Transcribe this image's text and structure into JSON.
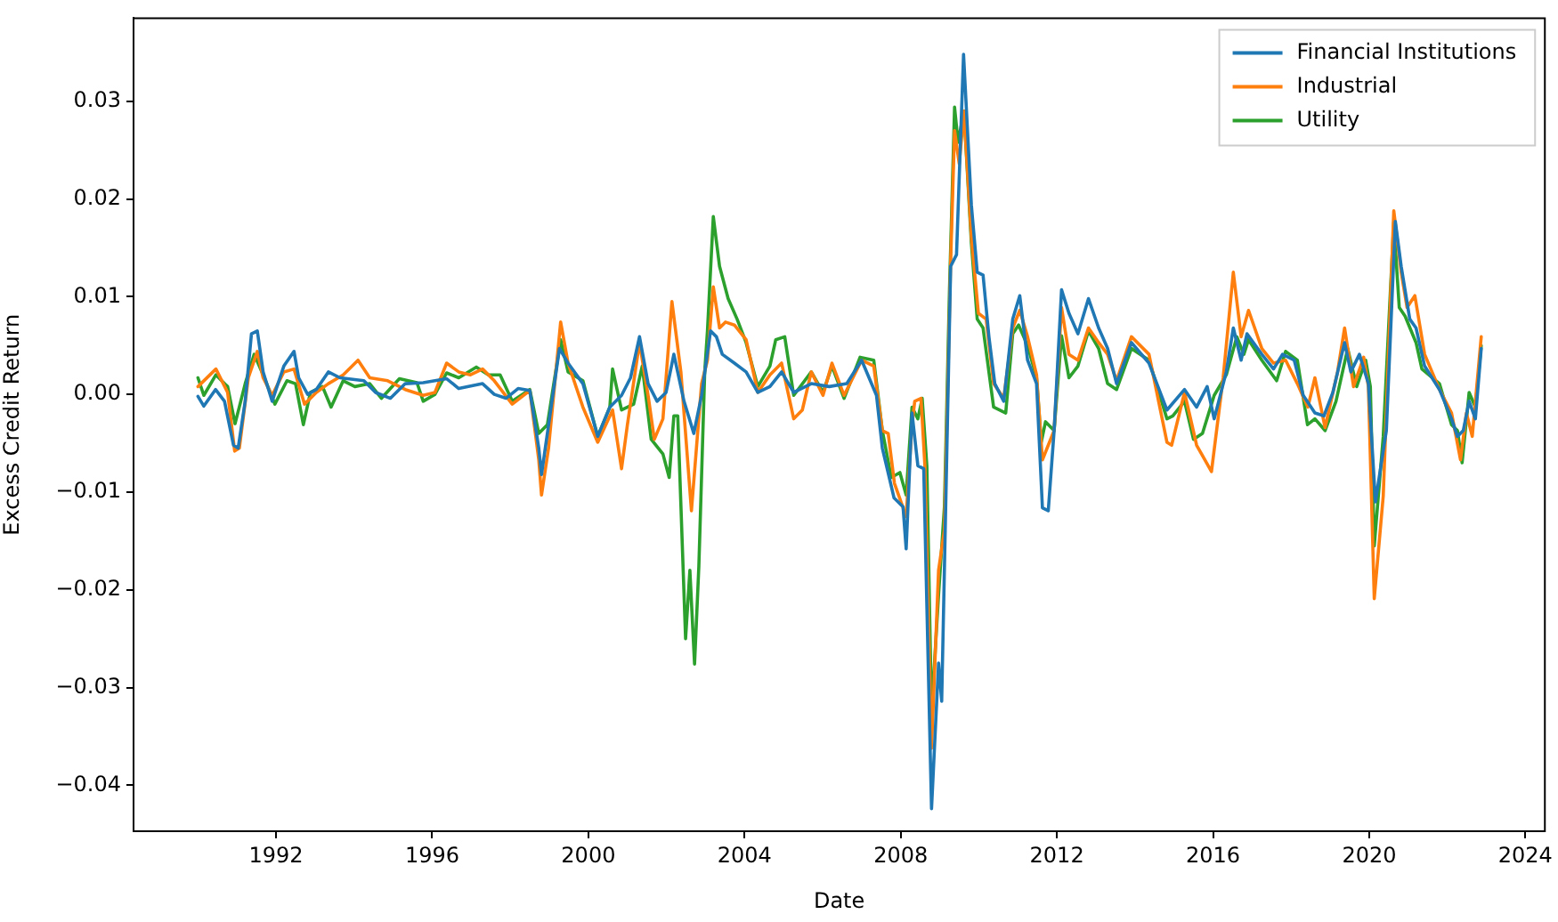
{
  "chart_data": {
    "type": "line",
    "xlabel": "Date",
    "ylabel": "Excess Credit Return",
    "legend": "top right",
    "grid": false,
    "line_style": "solid",
    "xlim": [
      1988.35,
      2024.5
    ],
    "xticks": [
      1992,
      1996,
      2000,
      2004,
      2008,
      2012,
      2016,
      2020,
      2024
    ],
    "ylim": [
      -0.0447,
      0.0385
    ],
    "yticks": [
      {
        "value": -0.04,
        "label": "−0.04"
      },
      {
        "value": -0.03,
        "label": "−0.03"
      },
      {
        "value": -0.02,
        "label": "−0.02"
      },
      {
        "value": -0.01,
        "label": "−0.01"
      },
      {
        "value": 0,
        "label": "0.00"
      },
      {
        "value": 0.01,
        "label": "0.01"
      },
      {
        "value": 0.02,
        "label": "0.02"
      },
      {
        "value": 0.03,
        "label": "0.03"
      }
    ],
    "series": [
      {
        "name": "Financial Institutions",
        "color": "#1f77b4",
        "x": [
          1990.0,
          1990.15,
          1990.45,
          1990.68,
          1990.91,
          1991.03,
          1991.21,
          1991.37,
          1991.52,
          1991.67,
          1991.9,
          1992.2,
          1992.46,
          1992.58,
          1992.81,
          1993.03,
          1993.34,
          1993.64,
          1994.25,
          1994.55,
          1994.93,
          1995.31,
          1995.77,
          1996.37,
          1996.68,
          1997.29,
          1997.59,
          1997.89,
          1998.2,
          1998.5,
          1998.73,
          1998.8,
          1998.95,
          1999.26,
          1999.48,
          1999.86,
          2000.24,
          2000.55,
          2000.85,
          2001.08,
          2001.31,
          2001.53,
          2001.76,
          2001.99,
          2002.19,
          2002.45,
          2002.7,
          2002.9,
          2003.13,
          2003.28,
          2003.43,
          2003.74,
          2004.04,
          2004.34,
          2004.65,
          2004.95,
          2005.26,
          2005.71,
          2006.17,
          2006.62,
          2007.0,
          2007.38,
          2007.53,
          2007.83,
          2008.06,
          2008.14,
          2008.29,
          2008.44,
          2008.59,
          2008.79,
          2008.97,
          2009.05,
          2009.28,
          2009.43,
          2009.61,
          2009.81,
          2009.96,
          2010.11,
          2010.26,
          2010.41,
          2010.64,
          2010.87,
          2011.05,
          2011.25,
          2011.48,
          2011.63,
          2011.78,
          2011.93,
          2012.12,
          2012.31,
          2012.54,
          2012.81,
          2013.07,
          2013.3,
          2013.53,
          2013.91,
          2014.36,
          2014.82,
          2015.27,
          2015.58,
          2015.85,
          2016.03,
          2016.34,
          2016.52,
          2016.72,
          2016.87,
          2017.25,
          2017.55,
          2017.78,
          2018.08,
          2018.31,
          2018.61,
          2018.84,
          2019.07,
          2019.37,
          2019.53,
          2019.75,
          2019.98,
          2020.16,
          2020.44,
          2020.67,
          2020.82,
          2021.04,
          2021.2,
          2021.42,
          2021.8,
          2022.11,
          2022.26,
          2022.41,
          2022.56,
          2022.72,
          2022.87
        ],
        "values": [
          -0.0002,
          -0.0012,
          0.0005,
          -0.0007,
          -0.0052,
          -0.0055,
          -0.0007,
          0.0062,
          0.0065,
          0.0023,
          -0.0007,
          0.0029,
          0.0044,
          0.0017,
          0,
          0.0005,
          0.0023,
          0.0017,
          0.0014,
          0.0002,
          -0.0004,
          0.0011,
          0.0012,
          0.0016,
          0.0006,
          0.0011,
          0,
          -0.0004,
          0.0006,
          0.0004,
          -0.0055,
          -0.0082,
          -0.004,
          0.0047,
          0.0032,
          0.0011,
          -0.0043,
          -0.0013,
          -0.0001,
          0.0017,
          0.0059,
          0.0011,
          -0.0007,
          0.0002,
          0.0041,
          -0.0007,
          -0.004,
          -0.0001,
          0.0065,
          0.0059,
          0.0041,
          0.0032,
          0.0023,
          0.0002,
          0.0008,
          0.0023,
          0.0002,
          0.0011,
          0.0008,
          0.0011,
          0.0035,
          -0.0001,
          -0.0055,
          -0.0106,
          -0.0115,
          -0.0158,
          -0.0019,
          -0.0073,
          -0.0076,
          -0.0424,
          -0.0275,
          -0.0314,
          0.0131,
          0.0143,
          0.0348,
          0.0194,
          0.0125,
          0.0122,
          0.0059,
          0.0011,
          -0.0007,
          0.0077,
          0.0101,
          0.0035,
          0.0011,
          -0.0116,
          -0.0119,
          -0.0037,
          0.0107,
          0.0083,
          0.0062,
          0.0098,
          0.0068,
          0.0047,
          0.0011,
          0.0053,
          0.0032,
          -0.0016,
          0.0005,
          -0.0013,
          0.0008,
          -0.0025,
          0.0023,
          0.0068,
          0.0035,
          0.0062,
          0.0041,
          0.0026,
          0.0041,
          0.0035,
          -0.0001,
          -0.0019,
          -0.0022,
          0.0002,
          0.0053,
          0.0023,
          0.0041,
          0.0011,
          -0.011,
          -0.0037,
          0.0177,
          0.0131,
          0.0077,
          0.0068,
          0.0029,
          0.0005,
          -0.0025,
          -0.0043,
          -0.0037,
          -0.0007,
          -0.0025,
          0.0047
        ]
      },
      {
        "name": "Industrial",
        "color": "#ff7f0e",
        "x": [
          1990.0,
          1990.46,
          1990.76,
          1990.94,
          1991.06,
          1991.29,
          1991.52,
          1991.67,
          1991.9,
          1992.2,
          1992.46,
          1992.73,
          1993.03,
          1993.34,
          1993.72,
          1994.1,
          1994.4,
          1994.86,
          1995.31,
          1995.77,
          1996.07,
          1996.37,
          1996.68,
          1996.98,
          1997.29,
          1997.59,
          1998.05,
          1998.5,
          1998.73,
          1998.8,
          1998.98,
          1999.29,
          1999.48,
          1999.86,
          2000.24,
          2000.62,
          2000.85,
          2001.0,
          2001.31,
          2001.53,
          2001.69,
          2001.91,
          2002.14,
          2002.37,
          2002.64,
          2002.9,
          2003.05,
          2003.2,
          2003.36,
          2003.51,
          2003.74,
          2004.04,
          2004.34,
          2004.65,
          2004.95,
          2005.26,
          2005.48,
          2005.71,
          2006.01,
          2006.24,
          2006.55,
          2007.0,
          2007.31,
          2007.53,
          2007.68,
          2007.84,
          2008.14,
          2008.29,
          2008.36,
          2008.52,
          2008.62,
          2008.79,
          2008.97,
          2009.12,
          2009.28,
          2009.38,
          2009.5,
          2009.62,
          2009.81,
          2009.99,
          2010.19,
          2010.38,
          2010.64,
          2010.87,
          2011.05,
          2011.25,
          2011.48,
          2011.63,
          2011.78,
          2011.93,
          2012.12,
          2012.31,
          2012.54,
          2012.81,
          2013.07,
          2013.3,
          2013.53,
          2013.91,
          2014.36,
          2014.82,
          2014.94,
          2015.27,
          2015.58,
          2015.96,
          2016.26,
          2016.52,
          2016.72,
          2016.91,
          2017.25,
          2017.55,
          2017.86,
          2018.16,
          2018.43,
          2018.61,
          2018.87,
          2019.19,
          2019.37,
          2019.6,
          2019.86,
          2019.98,
          2020.13,
          2020.36,
          2020.63,
          2020.82,
          2020.97,
          2021.17,
          2021.42,
          2021.8,
          2022.11,
          2022.34,
          2022.49,
          2022.64,
          2022.87
        ],
        "values": [
          0.0008,
          0.0026,
          0.0002,
          -0.0058,
          -0.0055,
          0.0017,
          0.0044,
          0.0017,
          -0.0001,
          0.0023,
          0.0026,
          -0.001,
          0.0002,
          0.0011,
          0.002,
          0.0035,
          0.0017,
          0.0014,
          0.0005,
          -0.0001,
          0.0002,
          0.0032,
          0.0023,
          0.002,
          0.0026,
          0.0014,
          -0.001,
          0.0004,
          -0.0067,
          -0.0103,
          -0.0055,
          0.0074,
          0.0032,
          -0.0013,
          -0.0049,
          -0.0016,
          -0.0076,
          -0.0031,
          0.0053,
          -0.0001,
          -0.0046,
          -0.0025,
          0.0095,
          0.0023,
          -0.0119,
          0.0011,
          0.0035,
          0.011,
          0.0068,
          0.0074,
          0.0071,
          0.0056,
          0.0002,
          0.002,
          0.0032,
          -0.0025,
          -0.0016,
          0.0023,
          -0.0001,
          0.0032,
          -0.0001,
          0.0035,
          0.0029,
          -0.0037,
          -0.004,
          -0.0091,
          -0.0125,
          -0.0031,
          -0.0007,
          -0.0004,
          -0.0073,
          -0.0362,
          -0.018,
          -0.0139,
          0.0137,
          0.027,
          0.0236,
          0.029,
          0.0161,
          0.0083,
          0.0077,
          0.0011,
          -0.0004,
          0.0068,
          0.0086,
          0.0059,
          0.002,
          -0.0067,
          -0.0052,
          -0.0037,
          0.0089,
          0.0041,
          0.0035,
          0.0068,
          0.0053,
          0.0041,
          0.0014,
          0.0059,
          0.0041,
          -0.0049,
          -0.0052,
          0.0002,
          -0.0052,
          -0.0079,
          0.0017,
          0.0125,
          0.0059,
          0.0086,
          0.0047,
          0.0032,
          0.0035,
          0.0011,
          -0.0013,
          0.0017,
          -0.0034,
          0.0023,
          0.0068,
          0.0008,
          0.0038,
          0.0008,
          -0.0209,
          -0.0104,
          0.0188,
          0.0125,
          0.0089,
          0.0101,
          0.0041,
          0.0005,
          -0.0019,
          -0.0067,
          -0.0019,
          -0.0043,
          0.0059
        ]
      },
      {
        "name": "Utility",
        "color": "#2ca02c",
        "x": [
          1990.0,
          1990.15,
          1990.46,
          1990.76,
          1990.95,
          1991.21,
          1991.44,
          1991.67,
          1991.97,
          1992.28,
          1992.5,
          1992.7,
          1992.88,
          1993.19,
          1993.41,
          1993.72,
          1994.02,
          1994.4,
          1994.7,
          1995.16,
          1995.61,
          1995.77,
          1996.07,
          1996.37,
          1996.68,
          1997.13,
          1997.44,
          1997.74,
          1998.05,
          1998.5,
          1998.73,
          1998.95,
          1999.29,
          1999.48,
          1999.86,
          2000.24,
          2000.55,
          2000.62,
          2000.85,
          2001.16,
          2001.38,
          2001.61,
          2001.91,
          2002.07,
          2002.19,
          2002.29,
          2002.49,
          2002.6,
          2002.72,
          2002.83,
          2002.98,
          2003.05,
          2003.2,
          2003.36,
          2003.58,
          2003.81,
          2004.04,
          2004.34,
          2004.65,
          2004.8,
          2005.03,
          2005.26,
          2005.71,
          2006.01,
          2006.24,
          2006.55,
          2006.96,
          2007.31,
          2007.53,
          2007.76,
          2007.98,
          2008.14,
          2008.29,
          2008.44,
          2008.55,
          2008.67,
          2008.79,
          2008.97,
          2009.12,
          2009.25,
          2009.38,
          2009.47,
          2009.62,
          2009.81,
          2009.96,
          2010.11,
          2010.38,
          2010.69,
          2010.87,
          2011.02,
          2011.25,
          2011.48,
          2011.6,
          2011.71,
          2011.93,
          2012.12,
          2012.31,
          2012.54,
          2012.81,
          2013.07,
          2013.3,
          2013.53,
          2013.91,
          2014.36,
          2014.82,
          2014.97,
          2015.27,
          2015.5,
          2015.73,
          2016.03,
          2016.34,
          2016.61,
          2016.79,
          2016.91,
          2017.25,
          2017.63,
          2017.86,
          2018.16,
          2018.42,
          2018.61,
          2018.87,
          2019.15,
          2019.45,
          2019.68,
          2019.91,
          2020.03,
          2020.13,
          2020.36,
          2020.63,
          2020.77,
          2020.92,
          2021.2,
          2021.35,
          2021.8,
          2022.11,
          2022.26,
          2022.38,
          2022.56,
          2022.72,
          2022.87
        ],
        "values": [
          0.0017,
          -0.0001,
          0.002,
          0.0008,
          -0.003,
          0.0011,
          0.0041,
          0.002,
          -0.001,
          0.0014,
          0.0011,
          -0.0031,
          0.0002,
          0.0008,
          -0.0013,
          0.0014,
          0.0008,
          0.0011,
          -0.0004,
          0.0016,
          0.0012,
          -0.0007,
          0,
          0.0022,
          0.0017,
          0.0028,
          0.002,
          0.002,
          -0.0007,
          0.0005,
          -0.004,
          -0.0031,
          0.0056,
          0.0023,
          0.0014,
          -0.0043,
          -0.0013,
          0.0026,
          -0.0016,
          -0.001,
          0.0029,
          -0.0046,
          -0.0061,
          -0.0085,
          -0.0022,
          -0.0022,
          -0.025,
          -0.018,
          -0.0276,
          -0.0176,
          0.0023,
          0.0065,
          0.0182,
          0.0131,
          0.0098,
          0.0077,
          0.0053,
          0.0008,
          0.0029,
          0.0056,
          0.0059,
          -0.0001,
          0.0023,
          0.0002,
          0.0029,
          -0.0004,
          0.0038,
          0.0035,
          -0.0037,
          -0.0085,
          -0.008,
          -0.0103,
          -0.0013,
          -0.0025,
          -0.0004,
          -0.0073,
          -0.0326,
          -0.0205,
          -0.0115,
          0.0107,
          0.0294,
          0.0258,
          0.029,
          0.0155,
          0.0077,
          0.0068,
          -0.0013,
          -0.0019,
          0.0062,
          0.0071,
          0.005,
          0.0017,
          -0.0049,
          -0.0028,
          -0.0037,
          0.006,
          0.0017,
          0.0029,
          0.0065,
          0.0047,
          0.0011,
          0.0005,
          0.0047,
          0.0035,
          -0.0025,
          -0.0022,
          -0.0007,
          -0.0046,
          -0.004,
          -0.0001,
          0.002,
          0.0059,
          0.0041,
          0.0056,
          0.0035,
          0.0014,
          0.0044,
          0.0035,
          -0.0031,
          -0.0025,
          -0.0037,
          -0.0007,
          0.0047,
          0.0008,
          0.0035,
          0.0008,
          -0.0155,
          -0.0043,
          0.0176,
          0.0089,
          0.008,
          0.0053,
          0.0026,
          0.0011,
          -0.0031,
          -0.0037,
          -0.007,
          0.0002,
          -0.0013,
          0.005
        ]
      }
    ]
  }
}
